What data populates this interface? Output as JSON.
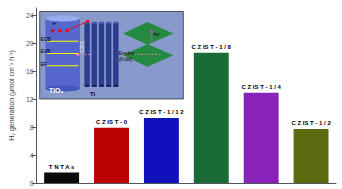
{
  "chart_data": {
    "type": "bar",
    "ylabel": "H₂ generation (μmol cm⁻² h⁻¹)",
    "categories": [
      "T N T A s",
      "C Z IS T - 0",
      "C Z IS T - 1 / 1 2",
      "C Z IS T - 1 / 8",
      "C Z IS T - 1 / 4",
      "C Z IS T - 1 / 2"
    ],
    "values": [
      1.5,
      7.9,
      9.3,
      18.6,
      12.9,
      7.7
    ],
    "colors": [
      "#0a0a0a",
      "#bb0000",
      "#1111bb",
      "#1a6b35",
      "#8822bb",
      "#5c6b10"
    ],
    "ylim": [
      0,
      25
    ],
    "yticks": [
      0,
      4,
      8,
      12,
      16,
      20,
      24
    ],
    "grid": false,
    "tick_labels": "y",
    "annotations": [
      "TiO₂",
      "Ti",
      "CZIS",
      "ECB",
      "EVB",
      "EF",
      "e⁻",
      "hν",
      "Eredox\n(Kubl)"
    ]
  }
}
